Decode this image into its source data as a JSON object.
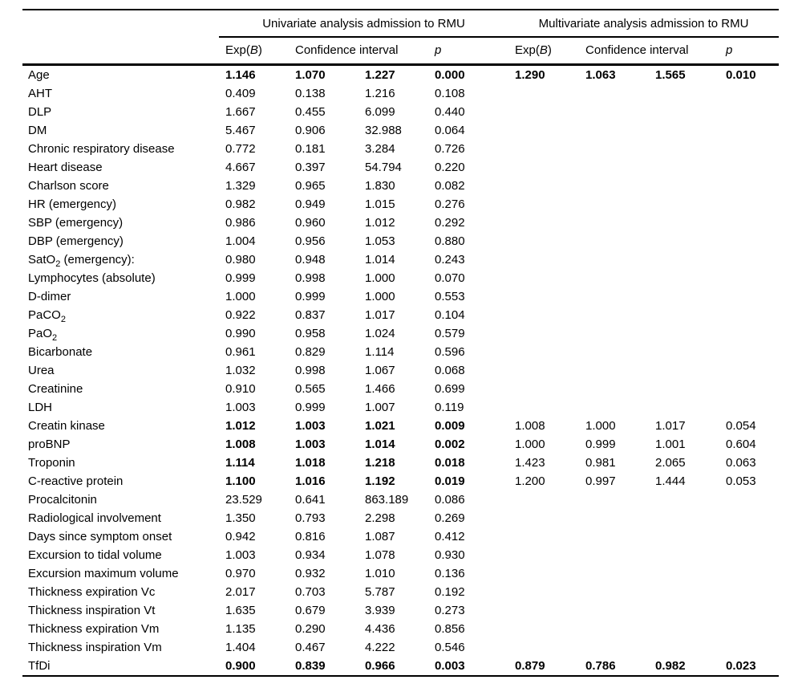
{
  "table": {
    "group_headers": [
      {
        "label": "Univariate analysis admission to RMU"
      },
      {
        "label": "Multivariate analysis admission to RMU"
      }
    ],
    "sub_headers": {
      "exp": {
        "pre": "Exp(",
        "italic": "B",
        "post": ")"
      },
      "ci": "Confidence interval",
      "p": "p"
    },
    "rows": [
      {
        "label": "Age",
        "uni": [
          "1.146",
          "1.070",
          "1.227",
          "0.000"
        ],
        "uni_bold": true,
        "multi": [
          "1.290",
          "1.063",
          "1.565",
          "0.010"
        ],
        "multi_bold": true
      },
      {
        "label": "AHT",
        "uni": [
          "0.409",
          "0.138",
          "1.216",
          "0.108"
        ]
      },
      {
        "label": "DLP",
        "uni": [
          "1.667",
          "0.455",
          "6.099",
          "0.440"
        ]
      },
      {
        "label": "DM",
        "uni": [
          "5.467",
          "0.906",
          "32.988",
          "0.064"
        ]
      },
      {
        "label": "Chronic respiratory disease",
        "uni": [
          "0.772",
          "0.181",
          "3.284",
          "0.726"
        ]
      },
      {
        "label": "Heart disease",
        "uni": [
          "4.667",
          "0.397",
          "54.794",
          "0.220"
        ]
      },
      {
        "label": "Charlson score",
        "uni": [
          "1.329",
          "0.965",
          "1.830",
          "0.082"
        ]
      },
      {
        "label": "HR (emergency)",
        "uni": [
          "0.982",
          "0.949",
          "1.015",
          "0.276"
        ]
      },
      {
        "label": "SBP (emergency)",
        "uni": [
          "0.986",
          "0.960",
          "1.012",
          "0.292"
        ]
      },
      {
        "label": "DBP (emergency)",
        "uni": [
          "1.004",
          "0.956",
          "1.053",
          "0.880"
        ]
      },
      {
        "label": [
          "SatO",
          {
            "sub": "2"
          },
          " (emergency):"
        ],
        "uni": [
          "0.980",
          "0.948",
          "1.014",
          "0.243"
        ]
      },
      {
        "label": "Lymphocytes (absolute)",
        "uni": [
          "0.999",
          "0.998",
          "1.000",
          "0.070"
        ]
      },
      {
        "label": "D-dimer",
        "uni": [
          "1.000",
          "0.999",
          "1.000",
          "0.553"
        ]
      },
      {
        "label": [
          "PaCO",
          {
            "sub": "2"
          }
        ],
        "uni": [
          "0.922",
          "0.837",
          "1.017",
          "0.104"
        ]
      },
      {
        "label": [
          "PaO",
          {
            "sub": "2"
          }
        ],
        "uni": [
          "0.990",
          "0.958",
          "1.024",
          "0.579"
        ]
      },
      {
        "label": "Bicarbonate",
        "uni": [
          "0.961",
          "0.829",
          "1.114",
          "0.596"
        ]
      },
      {
        "label": "Urea",
        "uni": [
          "1.032",
          "0.998",
          "1.067",
          "0.068"
        ]
      },
      {
        "label": "Creatinine",
        "uni": [
          "0.910",
          "0.565",
          "1.466",
          "0.699"
        ]
      },
      {
        "label": "LDH",
        "uni": [
          "1.003",
          "0.999",
          "1.007",
          "0.119"
        ]
      },
      {
        "label": "Creatin kinase",
        "uni": [
          "1.012",
          "1.003",
          "1.021",
          "0.009"
        ],
        "uni_bold": true,
        "multi": [
          "1.008",
          "1.000",
          "1.017",
          "0.054"
        ]
      },
      {
        "label": "proBNP",
        "uni": [
          "1.008",
          "1.003",
          "1.014",
          "0.002"
        ],
        "uni_bold": true,
        "multi": [
          "1.000",
          "0.999",
          "1.001",
          "0.604"
        ]
      },
      {
        "label": "Troponin",
        "uni": [
          "1.114",
          "1.018",
          "1.218",
          "0.018"
        ],
        "uni_bold": true,
        "multi": [
          "1.423",
          "0.981",
          "2.065",
          "0.063"
        ]
      },
      {
        "label": "C-reactive protein",
        "uni": [
          "1.100",
          "1.016",
          "1.192",
          "0.019"
        ],
        "uni_bold": true,
        "multi": [
          "1.200",
          "0.997",
          "1.444",
          "0.053"
        ]
      },
      {
        "label": "Procalcitonin",
        "uni": [
          "23.529",
          "0.641",
          "863.189",
          "0.086"
        ]
      },
      {
        "label": "Radiological involvement",
        "uni": [
          "1.350",
          "0.793",
          "2.298",
          "0.269"
        ]
      },
      {
        "label": "Days since symptom onset",
        "uni": [
          "0.942",
          "0.816",
          "1.087",
          "0.412"
        ]
      },
      {
        "label": "Excursion to tidal volume",
        "uni": [
          "1.003",
          "0.934",
          "1.078",
          "0.930"
        ]
      },
      {
        "label": "Excursion maximum volume",
        "uni": [
          "0.970",
          "0.932",
          "1.010",
          "0.136"
        ]
      },
      {
        "label": "Thickness expiration Vc",
        "uni": [
          "2.017",
          "0.703",
          "5.787",
          "0.192"
        ]
      },
      {
        "label": "Thickness inspiration Vt",
        "uni": [
          "1.635",
          "0.679",
          "3.939",
          "0.273"
        ]
      },
      {
        "label": "Thickness expiration Vm",
        "uni": [
          "1.135",
          "0.290",
          "4.436",
          "0.856"
        ]
      },
      {
        "label": "Thickness inspiration Vm",
        "uni": [
          "1.404",
          "0.467",
          "4.222",
          "0.546"
        ]
      },
      {
        "label": "TfDi",
        "uni": [
          "0.900",
          "0.839",
          "0.966",
          "0.003"
        ],
        "uni_bold": true,
        "multi": [
          "0.879",
          "0.786",
          "0.982",
          "0.023"
        ],
        "multi_bold": true
      }
    ]
  }
}
